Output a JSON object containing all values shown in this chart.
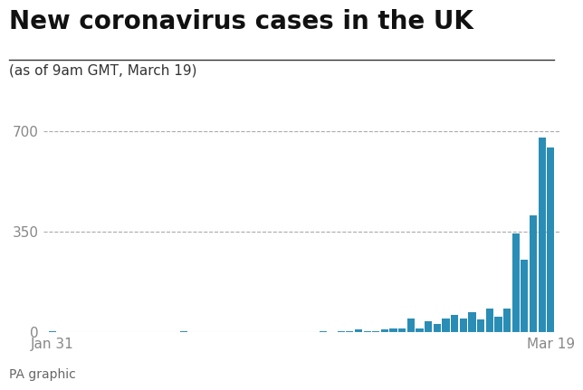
{
  "title": "New coronavirus cases in the UK",
  "subtitle": "(as of 9am GMT, March 19)",
  "footnote": "PA graphic",
  "bar_color": "#2a8db5",
  "background_color": "#ffffff",
  "ylim": [
    0,
    750
  ],
  "yticks": [
    0,
    350,
    700
  ],
  "title_fontsize": 20,
  "subtitle_fontsize": 11,
  "footnote_fontsize": 10,
  "values": [
    2,
    1,
    0,
    0,
    0,
    0,
    0,
    0,
    0,
    0,
    0,
    0,
    0,
    0,
    0,
    3,
    0,
    0,
    0,
    0,
    0,
    0,
    0,
    0,
    0,
    0,
    0,
    1,
    0,
    0,
    0,
    2,
    1,
    2,
    3,
    8,
    3,
    2,
    8,
    13,
    12,
    47,
    12,
    36,
    29,
    48,
    58,
    46,
    69,
    43,
    83,
    53,
    80,
    342,
    251,
    407,
    676,
    643
  ],
  "x_label_left": "Jan 31",
  "x_label_right": "Mar 19",
  "grid_color": "#aaaaaa",
  "separator_color": "#333333",
  "tick_label_color": "#888888",
  "title_color": "#111111",
  "subtitle_color": "#333333",
  "footnote_color": "#666666"
}
